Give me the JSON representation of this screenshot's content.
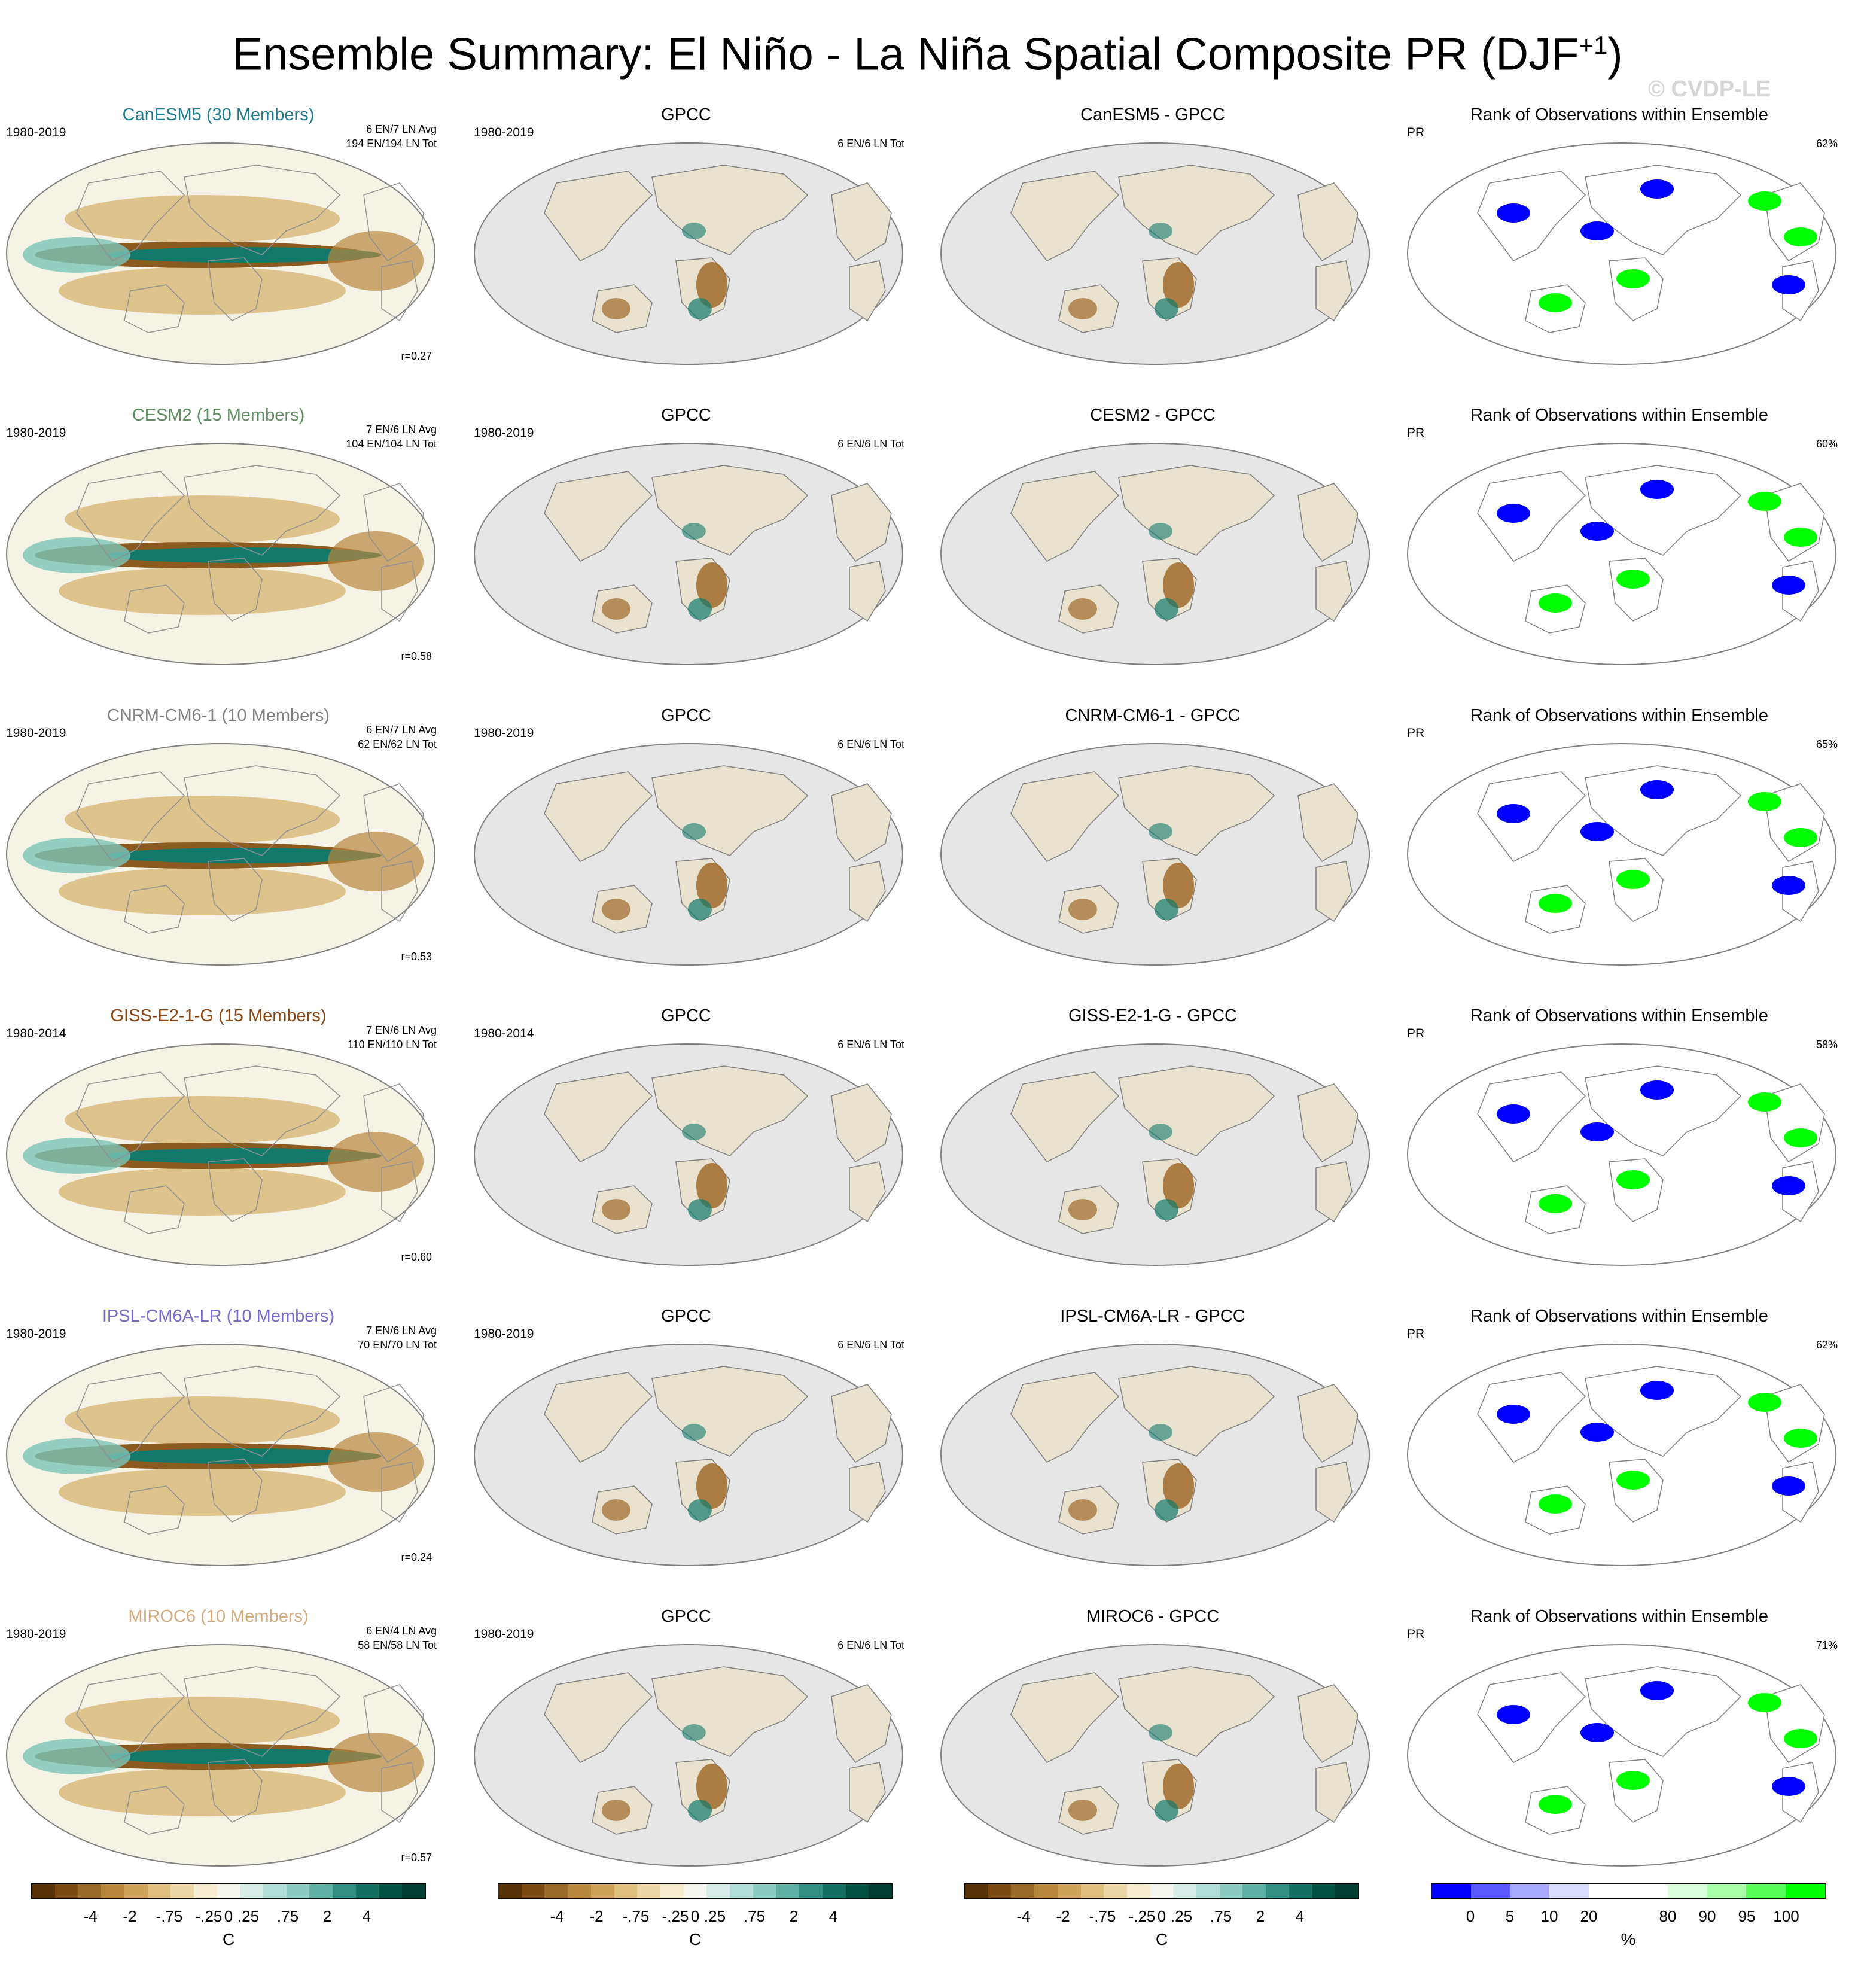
{
  "title": "Ensemble Summary: El Niño - La Niña Spatial Composite PR (DJF",
  "title_sup": "+1",
  "watermark": "© CVDP-LE",
  "obs_label": "GPCC",
  "rank_title": "Rank of Observations within Ensemble",
  "rank_var": "PR",
  "obs_counts": "6 EN/6 LN Tot",
  "rows": [
    {
      "model": "CanESM5",
      "title": "CanESM5 (30 Members)",
      "color": "#1f7a8c",
      "period": "1980-2019",
      "avg": "6 EN/7 LN Avg",
      "tot": "194 EN/194 LN Tot",
      "r": "r=0.27",
      "diff": "CanESM5 - GPCC",
      "pct": "62%"
    },
    {
      "model": "CESM2",
      "title": "CESM2 (15 Members)",
      "color": "#5f8f5f",
      "period": "1980-2019",
      "avg": "7 EN/6 LN Avg",
      "tot": "104 EN/104 LN Tot",
      "r": "r=0.58",
      "diff": "CESM2 - GPCC",
      "pct": "60%"
    },
    {
      "model": "CNRM-CM6-1",
      "title": "CNRM-CM6-1 (10 Members)",
      "color": "#808080",
      "period": "1980-2019",
      "avg": "6 EN/7 LN Avg",
      "tot": "62 EN/62 LN Tot",
      "r": "r=0.53",
      "diff": "CNRM-CM6-1 - GPCC",
      "pct": "65%"
    },
    {
      "model": "GISS-E2-1-G",
      "title": "GISS-E2-1-G (15 Members)",
      "color": "#8b4513",
      "period": "1980-2014",
      "avg": "7 EN/6 LN Avg",
      "tot": "110 EN/110 LN Tot",
      "r": "r=0.60",
      "diff": "GISS-E2-1-G - GPCC",
      "pct": "58%"
    },
    {
      "model": "IPSL-CM6A-LR",
      "title": "IPSL-CM6A-LR (10 Members)",
      "color": "#7b68c8",
      "period": "1980-2019",
      "avg": "7 EN/6 LN Avg",
      "tot": "70 EN/70 LN Tot",
      "r": "r=0.24",
      "diff": "IPSL-CM6A-LR - GPCC",
      "pct": "62%"
    },
    {
      "model": "MIROC6",
      "title": "MIROC6 (10 Members)",
      "color": "#d2aa7d",
      "period": "1980-2019",
      "avg": "6 EN/4 LN Avg",
      "tot": "58 EN/58 LN Tot",
      "r": "r=0.57",
      "diff": "MIROC6 - GPCC",
      "pct": "71%"
    }
  ],
  "colorbar_pr": {
    "colors": [
      "#543005",
      "#7a4a12",
      "#9b6a2b",
      "#b8863f",
      "#cfa35c",
      "#e0c07e",
      "#ecd8a6",
      "#f5ecd2",
      "#f5f5f0",
      "#d8ede8",
      "#b4dfd8",
      "#8ccbbf",
      "#5fb0a2",
      "#338f82",
      "#156f60",
      "#00513f",
      "#003c30"
    ],
    "ticks": [
      "-4",
      "-2",
      "-.75",
      "-.25",
      "0",
      ".25",
      ".75",
      "2",
      "4"
    ],
    "unit": "C"
  },
  "colorbar_rank": {
    "colors": [
      "#0000ff",
      "#5a5aff",
      "#a8a8ff",
      "#dcdcff",
      "#ffffff",
      "#ffffff",
      "#dcffdc",
      "#a8ffa8",
      "#5aff5a",
      "#00ff00"
    ],
    "ticks": [
      "0",
      "5",
      "10",
      "20",
      "80",
      "90",
      "95",
      "100"
    ],
    "unit": "%"
  },
  "colors": {
    "land_outline": "#808080",
    "ocean_gray": "#e6e6e6",
    "brown": "#a06a2a",
    "teal": "#137a6b",
    "rank_low": "#0000ff",
    "rank_high": "#00ff00"
  }
}
